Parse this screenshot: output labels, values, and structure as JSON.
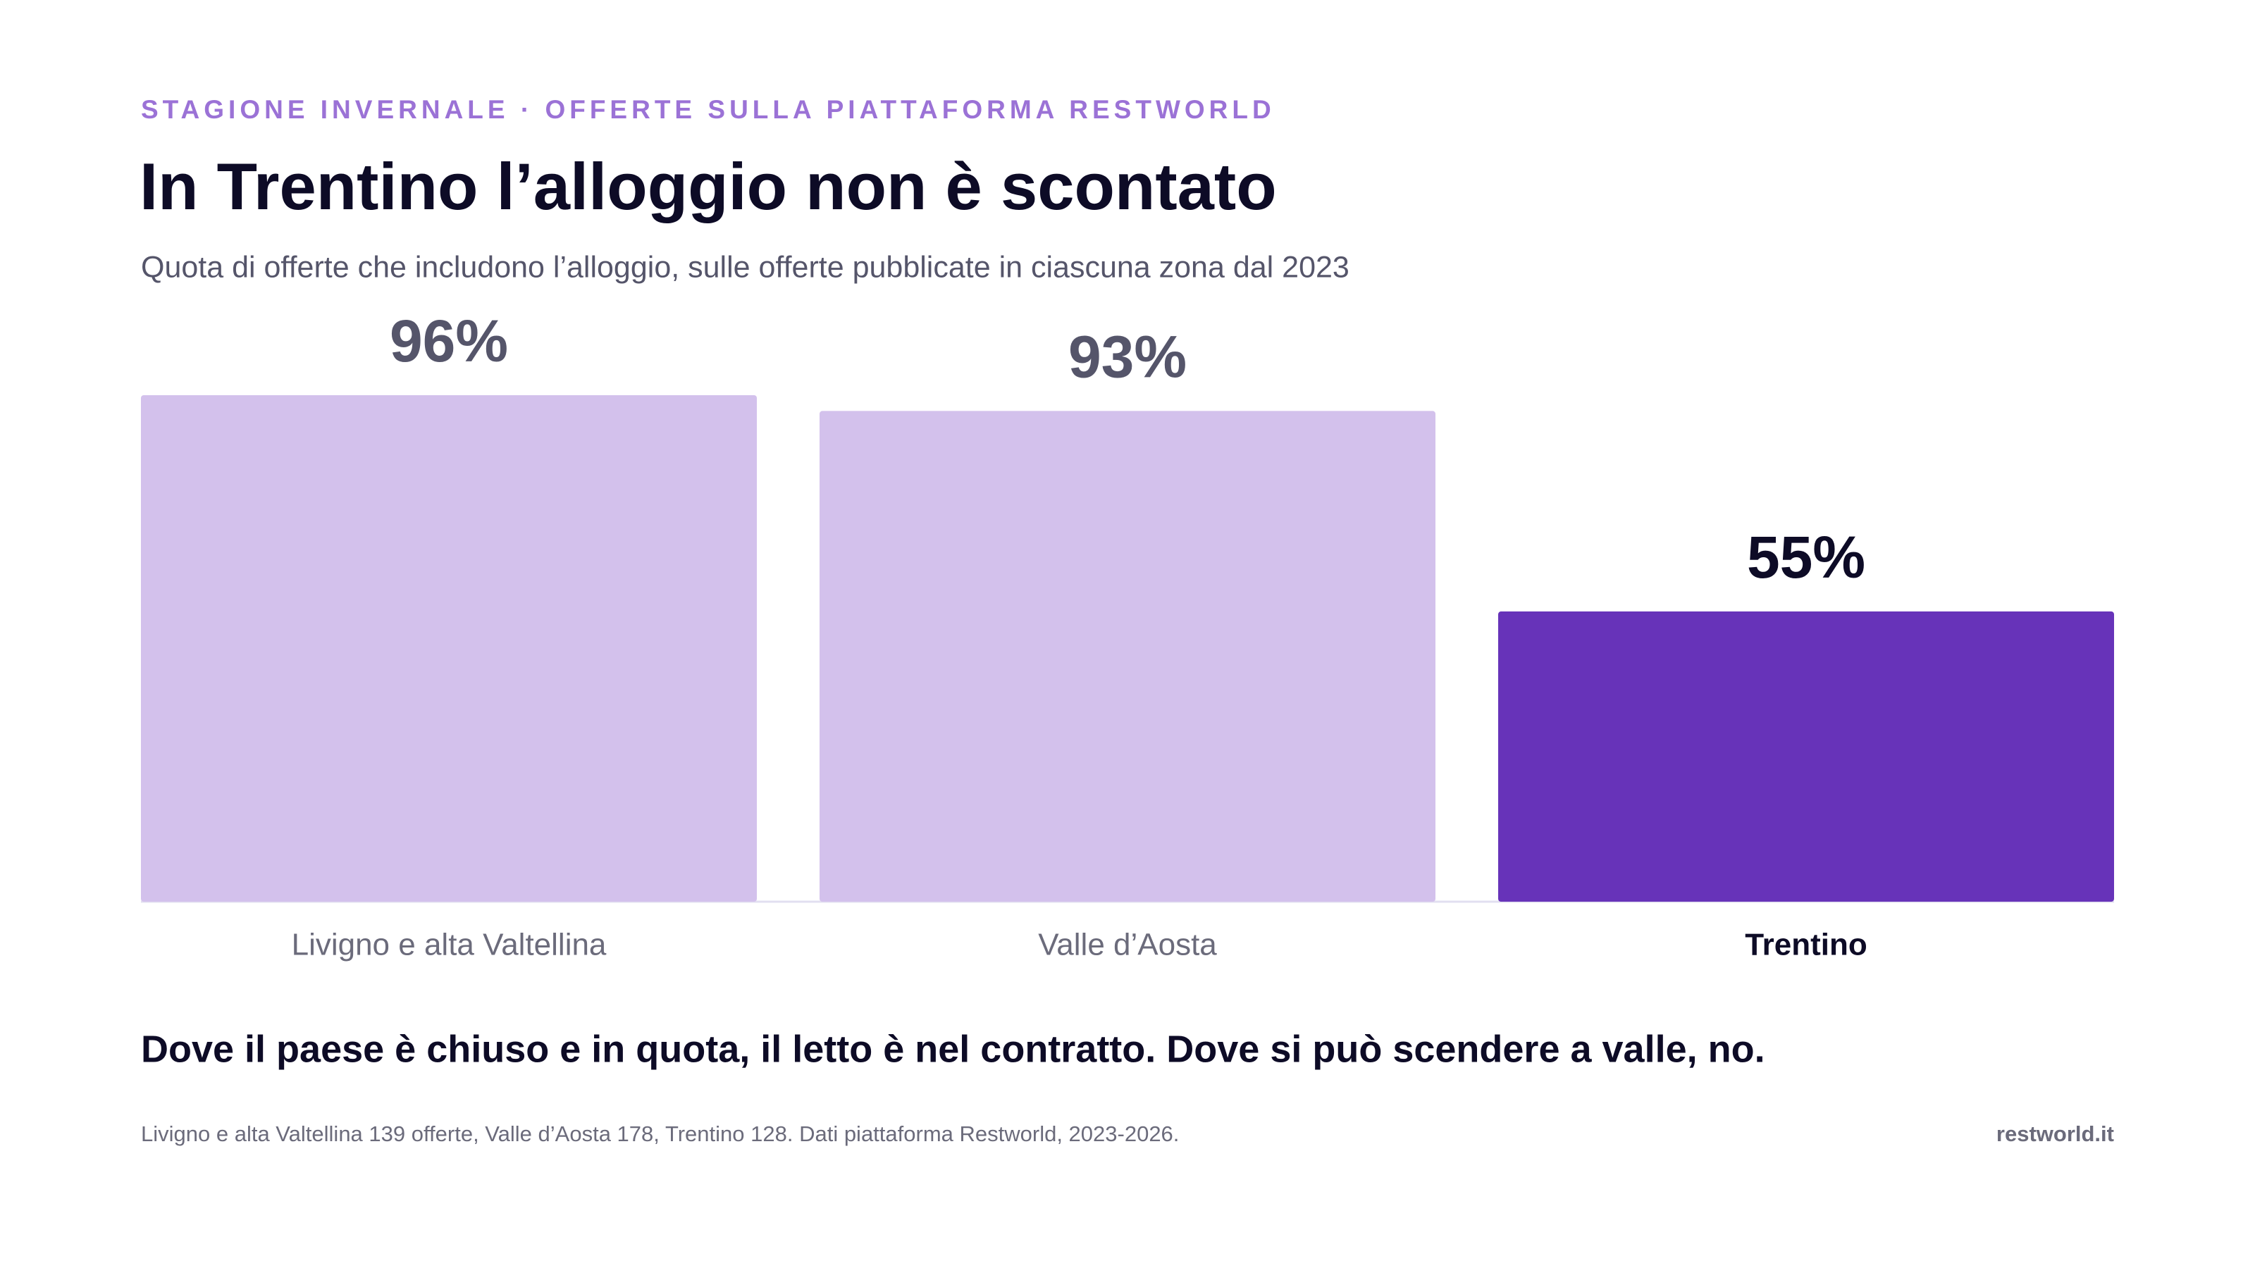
{
  "chart_data": {
    "type": "bar",
    "kicker": "STAGIONE INVERNALE · OFFERTE SULLA PIATTAFORMA RESTWORLD",
    "title": "In Trentino l’alloggio non è scontato",
    "subtitle": "Quota di offerte che includono l’alloggio, sulle offerte pubblicate in ciascuna zona dal 2023",
    "categories": [
      "Livigno e alta Valtellina",
      "Valle d’Aosta",
      "Trentino"
    ],
    "values": [
      96,
      93,
      55
    ],
    "value_labels": [
      "96%",
      "93%",
      "55%"
    ],
    "colors": [
      "#d3c1ec",
      "#d3c1ec",
      "#6733b9"
    ],
    "highlight": "Trentino",
    "ylim": [
      0,
      100
    ],
    "takeaway": "Dove il paese è chiuso e in quota, il letto è nel contratto. Dove si può scendere a valle, no.",
    "footnote": "Livigno e alta Valtellina 139 offerte, Valle d’Aosta 178, Trentino 128. Dati piattaforma Restworld, 2023-2026.",
    "source": "restworld.it"
  }
}
